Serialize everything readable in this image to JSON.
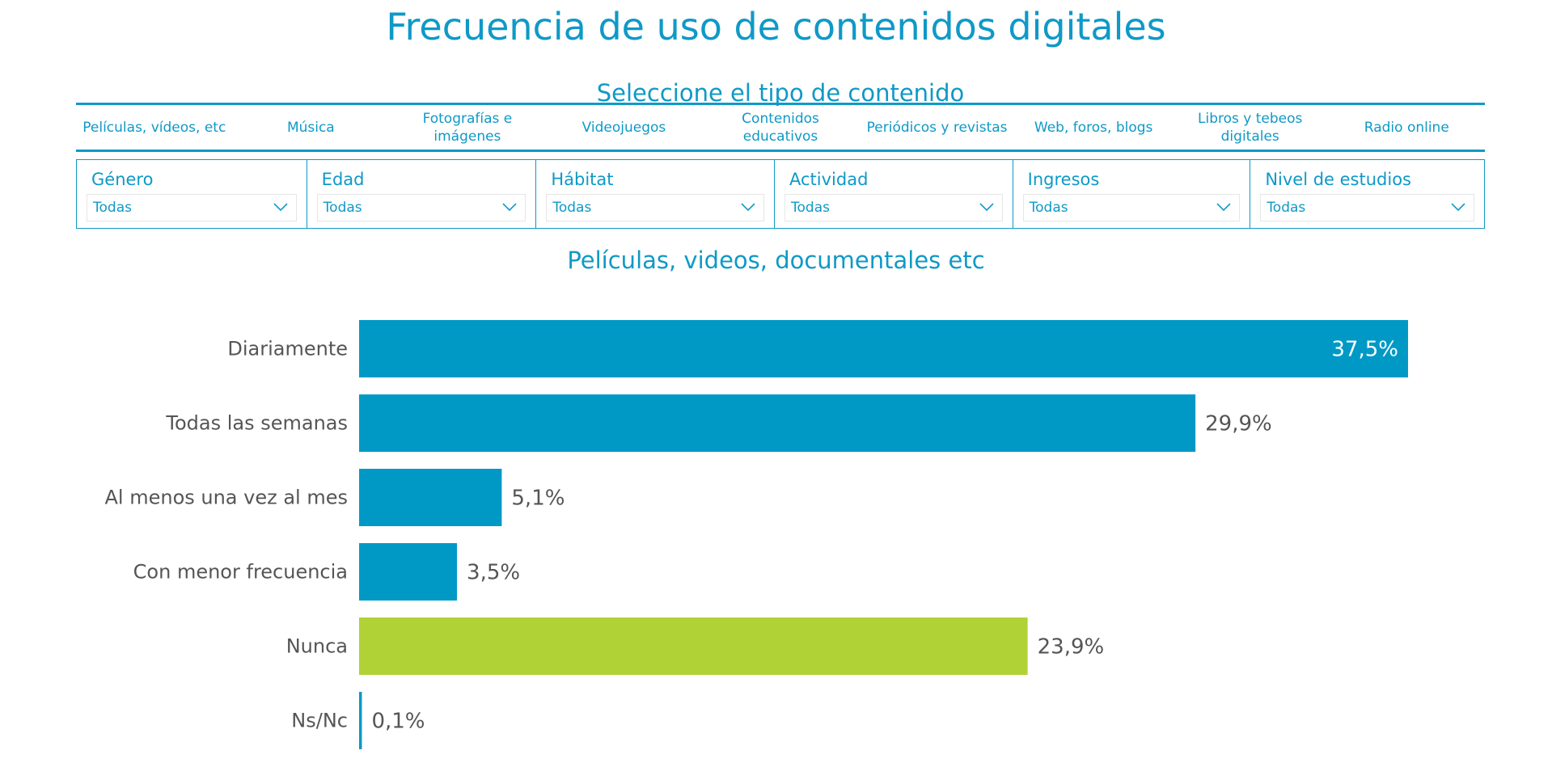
{
  "page": {
    "title": "Frecuencia de uso de contenidos digitales",
    "selector_heading": "Seleccione el tipo de contenido"
  },
  "tabs": [
    "Películas, vídeos, etc",
    "Música",
    "Fotografías e imágenes",
    "Videojuegos",
    "Contenidos educativos",
    "Periódicos y revistas",
    "Web, foros, blogs",
    "Libros y tebeos digitales",
    "Radio online"
  ],
  "filters": [
    {
      "label": "Género",
      "value": "Todas"
    },
    {
      "label": "Edad",
      "value": "Todas"
    },
    {
      "label": "Hábitat",
      "value": "Todas"
    },
    {
      "label": "Actividad",
      "value": "Todas"
    },
    {
      "label": "Ingresos",
      "value": "Todas"
    },
    {
      "label": "Nivel de estudios",
      "value": "Todas"
    }
  ],
  "colors": {
    "accent": "#0f99c7",
    "bar": "#0099c6",
    "bar_highlight": "#b0d236",
    "label_text": "#555555"
  },
  "chart_data": {
    "type": "bar",
    "orientation": "horizontal",
    "title": "Películas, videos, documentales etc",
    "xlabel": "",
    "ylabel": "",
    "xlim": [
      0,
      37.5
    ],
    "categories": [
      "Diariamente",
      "Todas las semanas",
      "Al menos una vez al mes",
      "Con menor frecuencia",
      "Nunca",
      "Ns/Nc"
    ],
    "values": [
      37.5,
      29.9,
      5.1,
      3.5,
      23.9,
      0.1
    ],
    "value_labels": [
      "37,5%",
      "29,9%",
      "5,1%",
      "3,5%",
      "23,9%",
      "0,1%"
    ],
    "highlight_category": "Nunca",
    "grid": false,
    "legend": "none"
  }
}
